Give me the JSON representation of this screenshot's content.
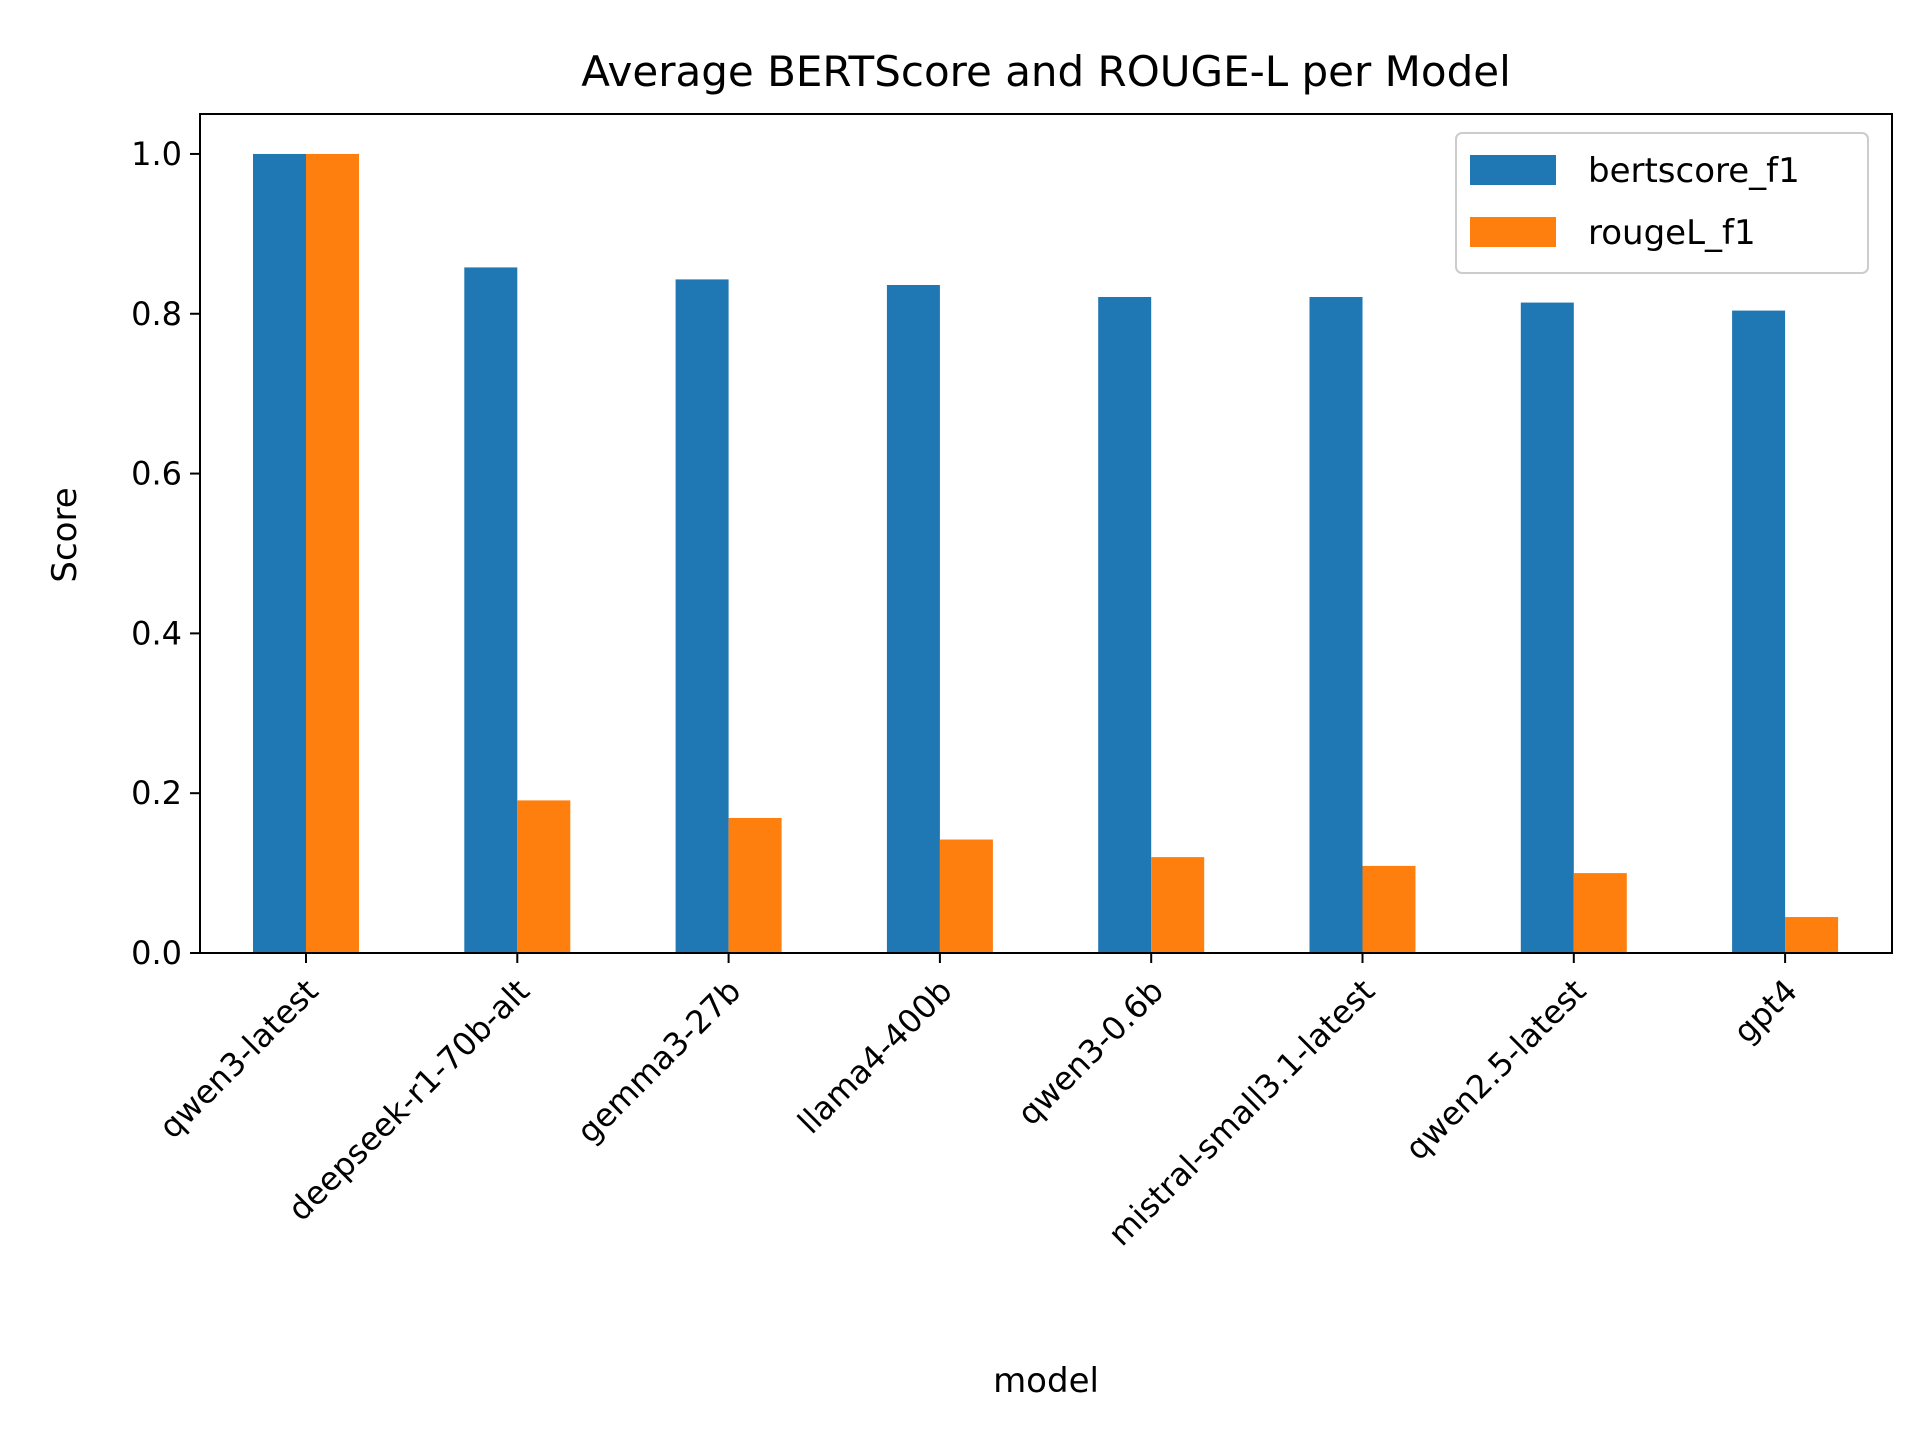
{
  "chart_data": {
    "type": "bar",
    "title": "Average BERTScore and ROUGE-L per Model",
    "xlabel": "model",
    "ylabel": "Score",
    "ylim": [
      0,
      1.05
    ],
    "yticks": [
      "0.0",
      "0.2",
      "0.4",
      "0.6",
      "0.8",
      "1.0"
    ],
    "grid": false,
    "legend_position": "top-right",
    "categories": [
      "qwen3-latest",
      "deepseek-r1-70b-alt",
      "gemma3-27b",
      "llama4-400b",
      "qwen3-0.6b",
      "mistral-small3.1-latest",
      "qwen2.5-latest",
      "gpt4"
    ],
    "series": [
      {
        "name": "bertscore_f1",
        "color": "#1f77b4",
        "values": [
          1.0,
          0.858,
          0.843,
          0.836,
          0.821,
          0.821,
          0.814,
          0.804
        ]
      },
      {
        "name": "rougeL_f1",
        "color": "#ff7f0e",
        "values": [
          1.0,
          0.191,
          0.169,
          0.142,
          0.12,
          0.109,
          0.1,
          0.045
        ]
      }
    ]
  }
}
